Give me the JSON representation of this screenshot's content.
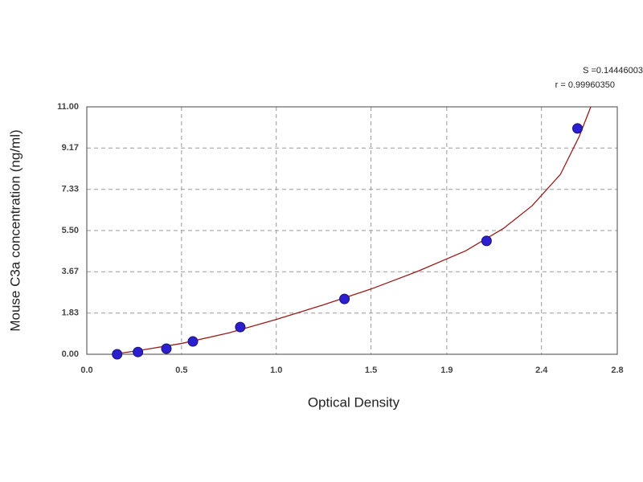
{
  "chart_data": {
    "type": "scatter",
    "annotations": [
      "S =0.14446003",
      "r = 0.99960350"
    ],
    "xlabel": "Optical Density",
    "ylabel": "Mouse C3a concentration (ng/ml)",
    "x": [
      0.16,
      0.27,
      0.42,
      0.56,
      0.81,
      1.36,
      2.11,
      2.59
    ],
    "values": [
      0.0,
      0.1,
      0.25,
      0.57,
      1.21,
      2.46,
      5.04,
      10.04
    ],
    "color": "#2b1fd0",
    "fit": {
      "x": [
        0.14,
        0.3,
        0.5,
        0.75,
        1.0,
        1.25,
        1.5,
        1.75,
        2.0,
        2.2,
        2.35,
        2.5,
        2.6,
        2.66
      ],
      "values": [
        0.0,
        0.2,
        0.48,
        0.95,
        1.55,
        2.2,
        2.9,
        3.7,
        4.6,
        5.6,
        6.6,
        8.0,
        9.7,
        11.0
      ],
      "color": "#9b1b1b"
    },
    "xlim": [
      0,
      2.8
    ],
    "xticks": [
      {
        "value": 0,
        "label": "0.0"
      },
      0.5,
      {
        "value": 1,
        "label": "1.0"
      },
      1.5,
      1.9,
      2.4,
      2.8
    ],
    "ylim": [
      0,
      11
    ],
    "yticks": [
      {
        "value": 0,
        "label": "0.00"
      },
      1.83,
      3.67,
      {
        "value": 5.5,
        "label": "5.50"
      },
      7.33,
      9.17,
      {
        "value": 11,
        "label": "11.00"
      }
    ],
    "grid": true
  }
}
